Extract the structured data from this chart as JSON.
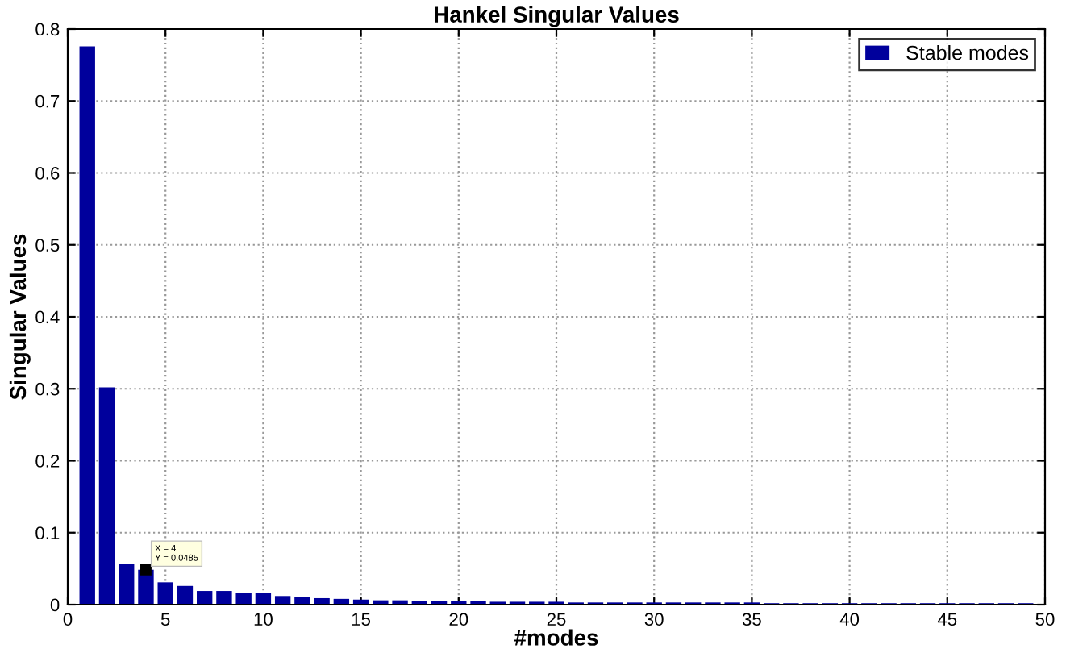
{
  "chart_data": {
    "type": "bar",
    "title": "Hankel Singular Values",
    "xlabel": "#modes",
    "ylabel": "Singular Values",
    "x": [
      1,
      2,
      3,
      4,
      5,
      6,
      7,
      8,
      9,
      10,
      11,
      12,
      13,
      14,
      15,
      16,
      17,
      18,
      19,
      20,
      21,
      22,
      23,
      24,
      25,
      26,
      27,
      28,
      29,
      30,
      31,
      32,
      33,
      34,
      35,
      36,
      37,
      38,
      39,
      40,
      41,
      42,
      43,
      44,
      45,
      46,
      47,
      48,
      49
    ],
    "series": [
      {
        "name": "Stable modes",
        "color": "#00009c",
        "values": [
          0.776,
          0.302,
          0.057,
          0.0485,
          0.031,
          0.026,
          0.019,
          0.019,
          0.016,
          0.016,
          0.012,
          0.011,
          0.009,
          0.008,
          0.007,
          0.006,
          0.006,
          0.005,
          0.005,
          0.005,
          0.005,
          0.004,
          0.004,
          0.004,
          0.004,
          0.003,
          0.003,
          0.003,
          0.003,
          0.003,
          0.003,
          0.003,
          0.003,
          0.003,
          0.003,
          0.002,
          0.002,
          0.002,
          0.002,
          0.002,
          0.002,
          0.002,
          0.002,
          0.002,
          0.002,
          0.002,
          0.002,
          0.002,
          0.002
        ]
      }
    ],
    "xlim": [
      0,
      50
    ],
    "xticks": [
      0,
      5,
      10,
      15,
      20,
      25,
      30,
      35,
      40,
      45,
      50
    ],
    "ylim": [
      0,
      0.8
    ],
    "yticks": [
      0,
      0.1,
      0.2,
      0.3,
      0.4,
      0.5,
      0.6,
      0.7,
      0.8
    ],
    "grid": true,
    "legend": "top right",
    "annotations": [
      {
        "text": "X = 4\nY = 0.0485",
        "x": 4,
        "y": 0.0485
      }
    ]
  }
}
